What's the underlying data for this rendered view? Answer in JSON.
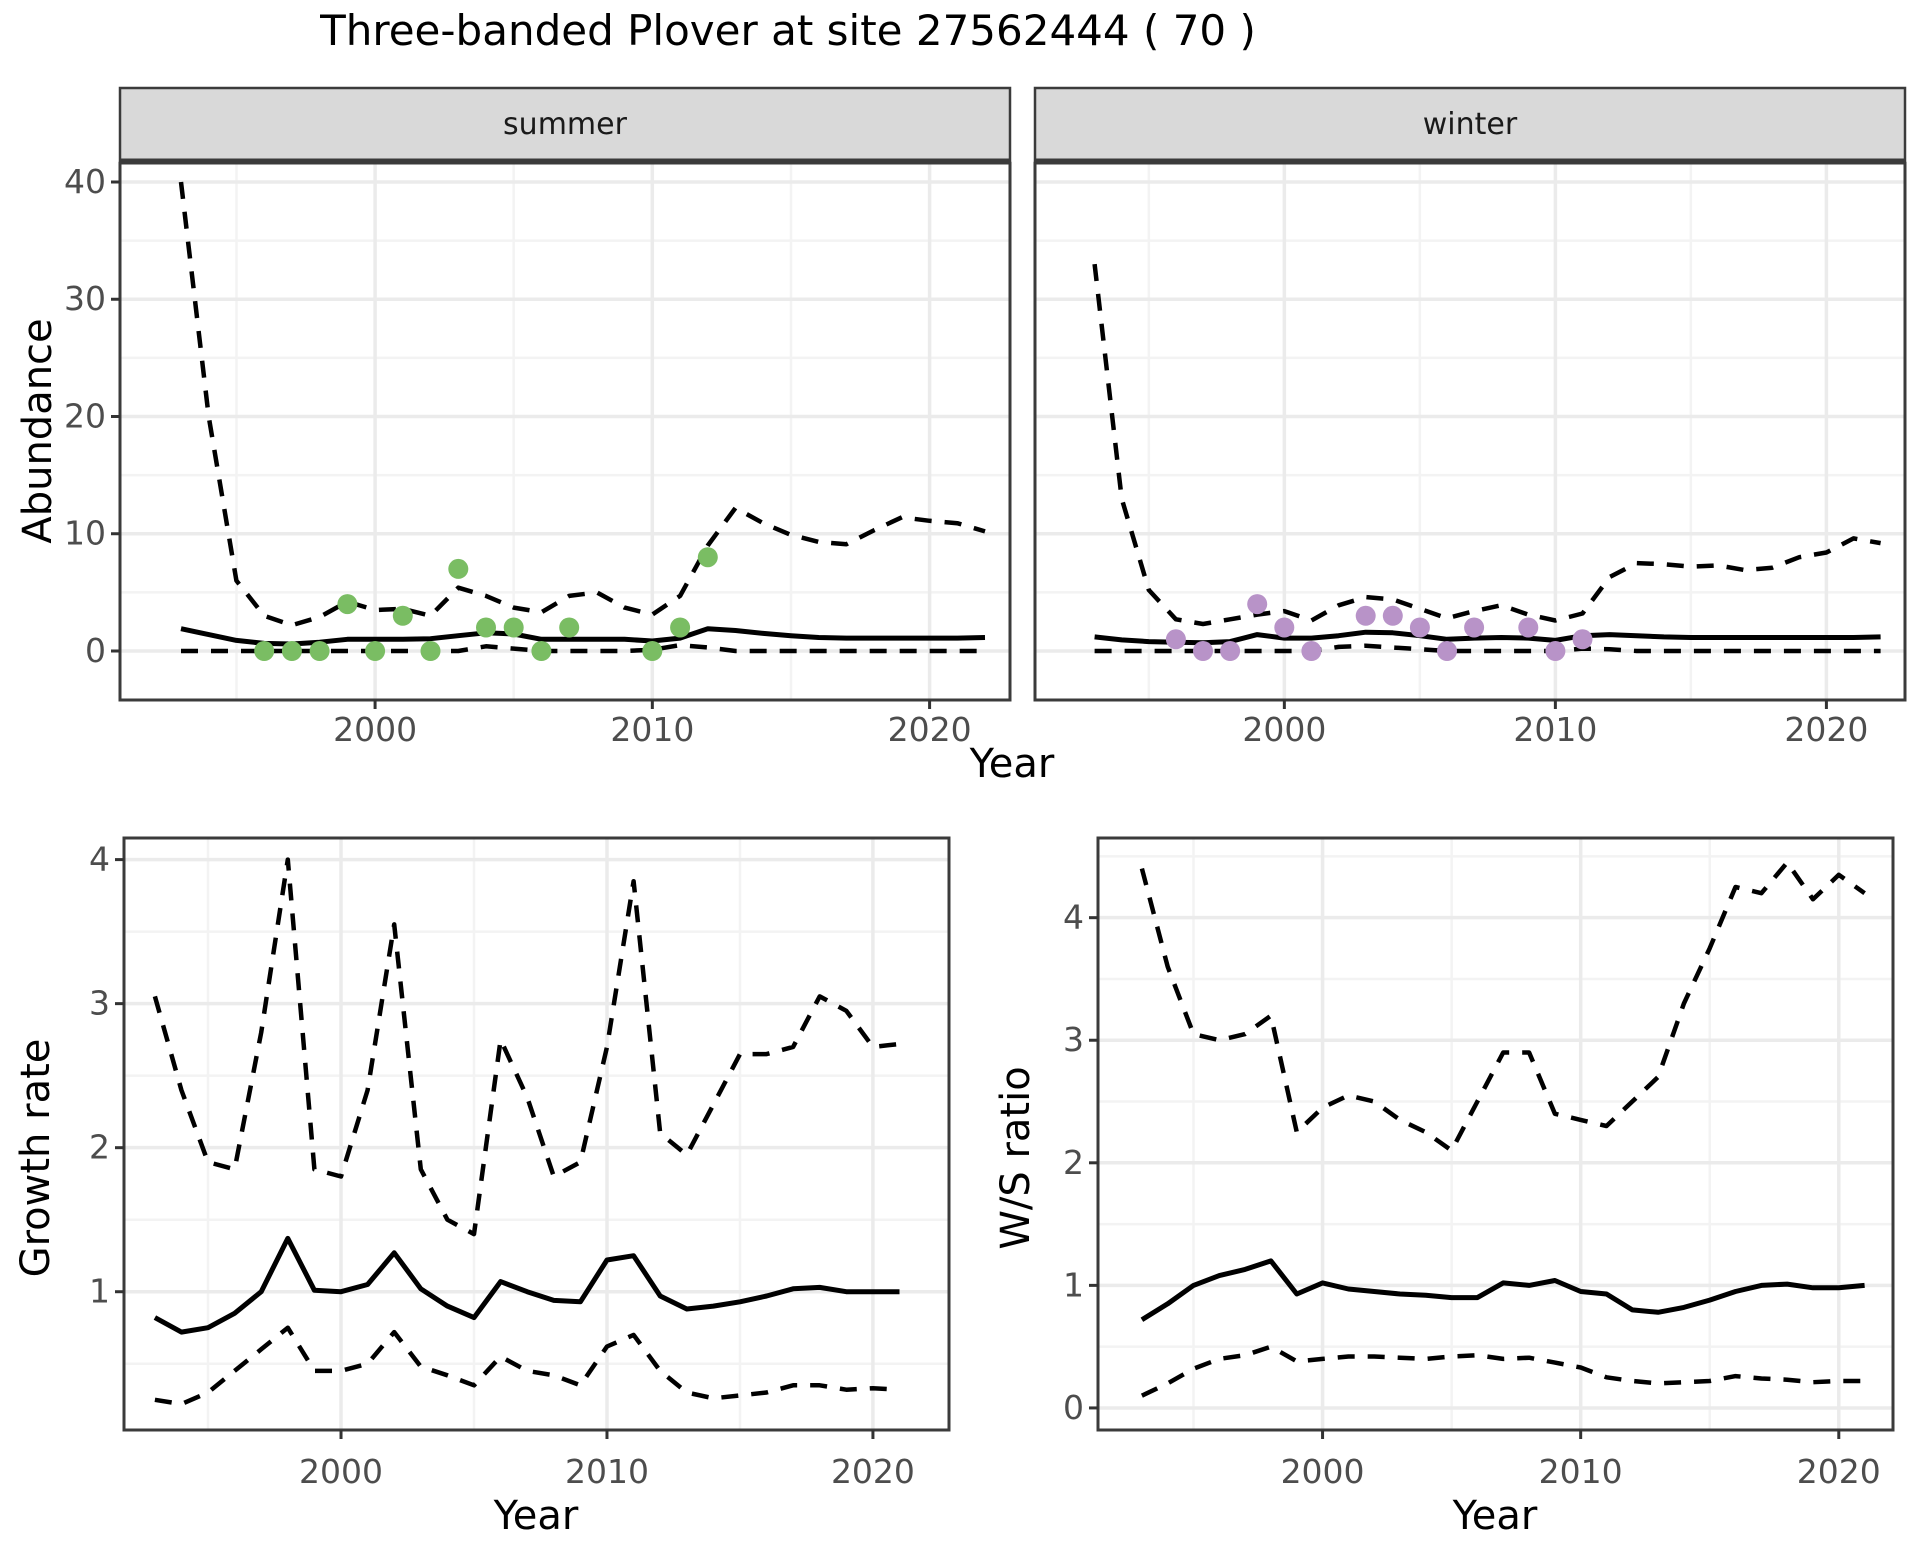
{
  "title": "Three-banded Plover at site 27562444 ( 70 )",
  "colors": {
    "summer_point": "#7ABD63",
    "winter_point": "#B893C8",
    "strip_bg": "#D9D9D9",
    "strip_border": "#3b3b3b",
    "panel_border": "#3b3b3b",
    "grid_major": "#EBEBEB",
    "grid_minor": "#F3F3F3",
    "line": "#000000",
    "tick_text": "#4D4D4D",
    "tick_mark": "#333333"
  },
  "chart_data": [
    {
      "id": "abundance-summer",
      "type": "line",
      "facet_label": "summer",
      "xlabel": "Year",
      "ylabel": "Abundance",
      "xlim": [
        1990.8,
        2022.9
      ],
      "ylim": [
        -4.18,
        41.62
      ],
      "x_ticks": [
        2000,
        2010,
        2020
      ],
      "x_minor": [
        1995,
        2005,
        2015
      ],
      "y_ticks": [
        0,
        10,
        20,
        30,
        40
      ],
      "y_minor": [
        5,
        15,
        25,
        35
      ],
      "grid": true,
      "series": [
        {
          "name": "upper-95ci",
          "linetype": "dashed",
          "years": [
            1993,
            1994,
            1995,
            1996,
            1997,
            1998,
            1999,
            2000,
            2001,
            2002,
            2003,
            2004,
            2005,
            2006,
            2007,
            2008,
            2009,
            2010,
            2011,
            2012,
            2013,
            2014,
            2015,
            2016,
            2017,
            2018,
            2019,
            2020,
            2021,
            2022
          ],
          "values": [
            40,
            20,
            6,
            3.0,
            2.2,
            2.9,
            4.2,
            3.5,
            3.6,
            3.0,
            5.4,
            4.7,
            3.7,
            3.3,
            4.7,
            5.0,
            3.7,
            3.1,
            4.7,
            9.0,
            12.2,
            10.9,
            9.9,
            9.3,
            9.1,
            10.3,
            11.4,
            11.1,
            10.9,
            10.2
          ]
        },
        {
          "name": "median",
          "linetype": "solid",
          "years": [
            1993,
            1994,
            1995,
            1996,
            1997,
            1998,
            1999,
            2000,
            2001,
            2002,
            2003,
            2004,
            2005,
            2006,
            2007,
            2008,
            2009,
            2010,
            2011,
            2012,
            2013,
            2014,
            2015,
            2016,
            2017,
            2018,
            2019,
            2020,
            2021,
            2022
          ],
          "values": [
            1.9,
            1.4,
            0.9,
            0.65,
            0.6,
            0.75,
            1.0,
            1.0,
            1.0,
            1.05,
            1.3,
            1.55,
            1.45,
            1.0,
            1.0,
            1.0,
            1.0,
            0.85,
            1.1,
            1.9,
            1.75,
            1.5,
            1.3,
            1.15,
            1.1,
            1.1,
            1.1,
            1.1,
            1.1,
            1.15
          ]
        },
        {
          "name": "lower-95ci",
          "linetype": "dashed",
          "years": [
            1993,
            1994,
            1995,
            1996,
            1997,
            1998,
            1999,
            2000,
            2001,
            2002,
            2003,
            2004,
            2005,
            2006,
            2007,
            2008,
            2009,
            2010,
            2011,
            2012,
            2013,
            2014,
            2015,
            2016,
            2017,
            2018,
            2019,
            2020,
            2021,
            2022
          ],
          "values": [
            0,
            0,
            0,
            0,
            0,
            0,
            0,
            0,
            0,
            0,
            0,
            0.4,
            0.2,
            0,
            0,
            0,
            0,
            0.1,
            0.5,
            0.3,
            0,
            0,
            0,
            0,
            0,
            0,
            0,
            0,
            0,
            0
          ]
        }
      ],
      "points": {
        "name": "observed-count",
        "color": "#7ABD63",
        "years": [
          1996,
          1997,
          1998,
          1999,
          2000,
          2001,
          2002,
          2003,
          2004,
          2005,
          2006,
          2007,
          2010,
          2011,
          2012
        ],
        "values": [
          0,
          0,
          0,
          4,
          0,
          3,
          0,
          7,
          2,
          2,
          0,
          2,
          0,
          2,
          8
        ]
      }
    },
    {
      "id": "abundance-winter",
      "type": "line",
      "facet_label": "winter",
      "xlabel": "Year",
      "ylabel": "Abundance",
      "xlim": [
        1990.8,
        2022.9
      ],
      "ylim": [
        -4.18,
        41.62
      ],
      "x_ticks": [
        2000,
        2010,
        2020
      ],
      "x_minor": [
        1995,
        2005,
        2015
      ],
      "y_ticks": [
        0,
        10,
        20,
        30,
        40
      ],
      "y_minor": [
        5,
        15,
        25,
        35
      ],
      "grid": true,
      "series": [
        {
          "name": "upper-95ci",
          "linetype": "dashed",
          "years": [
            1993,
            1994,
            1995,
            1996,
            1997,
            1998,
            1999,
            2000,
            2001,
            2002,
            2003,
            2004,
            2005,
            2006,
            2007,
            2008,
            2009,
            2010,
            2011,
            2012,
            2013,
            2014,
            2015,
            2016,
            2017,
            2018,
            2019,
            2020,
            2021,
            2022
          ],
          "values": [
            33,
            13,
            5.2,
            2.7,
            2.3,
            2.7,
            3.1,
            3.4,
            2.6,
            3.9,
            4.6,
            4.4,
            3.6,
            2.8,
            3.4,
            3.9,
            3.1,
            2.6,
            3.2,
            6.3,
            7.5,
            7.4,
            7.2,
            7.3,
            6.9,
            7.1,
            8.0,
            8.4,
            9.6,
            9.2
          ]
        },
        {
          "name": "median",
          "linetype": "solid",
          "years": [
            1993,
            1994,
            1995,
            1996,
            1997,
            1998,
            1999,
            2000,
            2001,
            2002,
            2003,
            2004,
            2005,
            2006,
            2007,
            2008,
            2009,
            2010,
            2011,
            2012,
            2013,
            2014,
            2015,
            2016,
            2017,
            2018,
            2019,
            2020,
            2021,
            2022
          ],
          "values": [
            1.2,
            0.95,
            0.8,
            0.75,
            0.7,
            0.8,
            1.4,
            1.1,
            1.1,
            1.3,
            1.6,
            1.55,
            1.3,
            1.0,
            1.1,
            1.15,
            1.1,
            0.9,
            1.3,
            1.4,
            1.3,
            1.2,
            1.15,
            1.15,
            1.15,
            1.15,
            1.15,
            1.15,
            1.15,
            1.2
          ]
        },
        {
          "name": "lower-95ci",
          "linetype": "dashed",
          "years": [
            1993,
            1994,
            1995,
            1996,
            1997,
            1998,
            1999,
            2000,
            2001,
            2002,
            2003,
            2004,
            2005,
            2006,
            2007,
            2008,
            2009,
            2010,
            2011,
            2012,
            2013,
            2014,
            2015,
            2016,
            2017,
            2018,
            2019,
            2020,
            2021,
            2022
          ],
          "values": [
            0,
            0,
            0,
            0,
            0,
            0,
            0,
            0,
            0,
            0.35,
            0.45,
            0.3,
            0.15,
            0,
            0,
            0,
            0,
            0,
            0.2,
            0.15,
            0,
            0,
            0,
            0,
            0,
            0,
            0,
            0,
            0,
            0
          ]
        }
      ],
      "points": {
        "name": "observed-count",
        "color": "#B893C8",
        "years": [
          1996,
          1997,
          1998,
          1999,
          2000,
          2001,
          2003,
          2004,
          2005,
          2006,
          2007,
          2009,
          2010,
          2011
        ],
        "values": [
          1,
          0,
          0,
          4,
          2,
          0,
          3,
          3,
          2,
          0,
          2,
          2,
          0,
          1
        ]
      }
    },
    {
      "id": "growth-rate",
      "type": "line",
      "xlabel": "Year",
      "ylabel": "Growth rate",
      "xlim": [
        1991.84,
        2022.86
      ],
      "ylim": [
        0.04,
        4.15
      ],
      "x_ticks": [
        2000,
        2010,
        2020
      ],
      "x_minor": [
        1995,
        2005,
        2015
      ],
      "y_ticks": [
        1,
        2,
        3,
        4
      ],
      "y_minor": [
        0.5,
        1.5,
        2.5,
        3.5
      ],
      "grid": true,
      "series": [
        {
          "name": "upper-95ci",
          "linetype": "dashed",
          "years": [
            1993,
            1994,
            1995,
            1996,
            1997,
            1998,
            1999,
            2000,
            2001,
            2002,
            2003,
            2004,
            2005,
            2006,
            2007,
            2008,
            2009,
            2010,
            2011,
            2012,
            2013,
            2014,
            2015,
            2016,
            2017,
            2018,
            2019,
            2020,
            2021
          ],
          "values": [
            3.05,
            2.4,
            1.9,
            1.85,
            2.8,
            4.0,
            1.85,
            1.8,
            2.4,
            3.55,
            1.85,
            1.5,
            1.4,
            2.75,
            2.35,
            1.8,
            1.9,
            2.7,
            3.85,
            2.1,
            1.95,
            2.3,
            2.65,
            2.65,
            2.7,
            3.05,
            2.95,
            2.7,
            2.72
          ]
        },
        {
          "name": "median",
          "linetype": "solid",
          "years": [
            1993,
            1994,
            1995,
            1996,
            1997,
            1998,
            1999,
            2000,
            2001,
            2002,
            2003,
            2004,
            2005,
            2006,
            2007,
            2008,
            2009,
            2010,
            2011,
            2012,
            2013,
            2014,
            2015,
            2016,
            2017,
            2018,
            2019,
            2020,
            2021
          ],
          "values": [
            0.82,
            0.72,
            0.75,
            0.85,
            1.0,
            1.37,
            1.01,
            1.0,
            1.05,
            1.27,
            1.02,
            0.9,
            0.82,
            1.07,
            1.0,
            0.94,
            0.93,
            1.22,
            1.25,
            0.97,
            0.88,
            0.9,
            0.93,
            0.97,
            1.02,
            1.03,
            1.0,
            1.0,
            1.0
          ]
        },
        {
          "name": "lower-95ci",
          "linetype": "dashed",
          "years": [
            1993,
            1994,
            1995,
            1996,
            1997,
            1998,
            1999,
            2000,
            2001,
            2002,
            2003,
            2004,
            2005,
            2006,
            2007,
            2008,
            2009,
            2010,
            2011,
            2012,
            2013,
            2014,
            2015,
            2016,
            2017,
            2018,
            2019,
            2020,
            2021
          ],
          "values": [
            0.25,
            0.22,
            0.3,
            0.45,
            0.6,
            0.75,
            0.45,
            0.45,
            0.5,
            0.72,
            0.48,
            0.42,
            0.35,
            0.55,
            0.45,
            0.42,
            0.35,
            0.62,
            0.7,
            0.45,
            0.3,
            0.26,
            0.28,
            0.3,
            0.35,
            0.35,
            0.32,
            0.33,
            0.32
          ]
        }
      ]
    },
    {
      "id": "ws-ratio",
      "type": "line",
      "xlabel": "Year",
      "ylabel": "W/S ratio",
      "xlim": [
        1991.3,
        2022.1
      ],
      "ylim": [
        -0.18,
        4.65
      ],
      "x_ticks": [
        2000,
        2010,
        2020
      ],
      "x_minor": [
        1995,
        2005,
        2015
      ],
      "y_ticks": [
        0,
        1,
        2,
        3,
        4
      ],
      "y_minor": [
        0.5,
        1.5,
        2.5,
        3.5,
        4.5
      ],
      "grid": true,
      "series": [
        {
          "name": "upper-95ci",
          "linetype": "dashed",
          "years": [
            1993,
            1994,
            1995,
            1996,
            1997,
            1998,
            1999,
            2000,
            2001,
            2002,
            2003,
            2004,
            2005,
            2006,
            2007,
            2008,
            2009,
            2010,
            2011,
            2012,
            2013,
            2014,
            2015,
            2016,
            2017,
            2018,
            2019,
            2020,
            2021
          ],
          "values": [
            4.4,
            3.6,
            3.05,
            3.0,
            3.05,
            3.2,
            2.25,
            2.45,
            2.55,
            2.5,
            2.35,
            2.25,
            2.1,
            2.5,
            2.9,
            2.9,
            2.4,
            2.35,
            2.3,
            2.5,
            2.7,
            3.3,
            3.75,
            4.25,
            4.2,
            4.45,
            4.15,
            4.35,
            4.2
          ]
        },
        {
          "name": "median",
          "linetype": "solid",
          "years": [
            1993,
            1994,
            1995,
            1996,
            1997,
            1998,
            1999,
            2000,
            2001,
            2002,
            2003,
            2004,
            2005,
            2006,
            2007,
            2008,
            2009,
            2010,
            2011,
            2012,
            2013,
            2014,
            2015,
            2016,
            2017,
            2018,
            2019,
            2020,
            2021
          ],
          "values": [
            0.72,
            0.85,
            1.0,
            1.08,
            1.13,
            1.2,
            0.93,
            1.02,
            0.97,
            0.95,
            0.93,
            0.92,
            0.9,
            0.9,
            1.02,
            1.0,
            1.04,
            0.95,
            0.93,
            0.8,
            0.78,
            0.82,
            0.88,
            0.95,
            1.0,
            1.01,
            0.98,
            0.98,
            1.0
          ]
        },
        {
          "name": "lower-95ci",
          "linetype": "dashed",
          "years": [
            1993,
            1994,
            1995,
            1996,
            1997,
            1998,
            1999,
            2000,
            2001,
            2002,
            2003,
            2004,
            2005,
            2006,
            2007,
            2008,
            2009,
            2010,
            2011,
            2012,
            2013,
            2014,
            2015,
            2016,
            2017,
            2018,
            2019,
            2020,
            2021
          ],
          "values": [
            0.1,
            0.2,
            0.32,
            0.4,
            0.43,
            0.5,
            0.38,
            0.4,
            0.42,
            0.42,
            0.41,
            0.4,
            0.42,
            0.43,
            0.4,
            0.41,
            0.37,
            0.33,
            0.25,
            0.22,
            0.2,
            0.21,
            0.22,
            0.26,
            0.24,
            0.23,
            0.21,
            0.22,
            0.22
          ]
        }
      ]
    }
  ]
}
